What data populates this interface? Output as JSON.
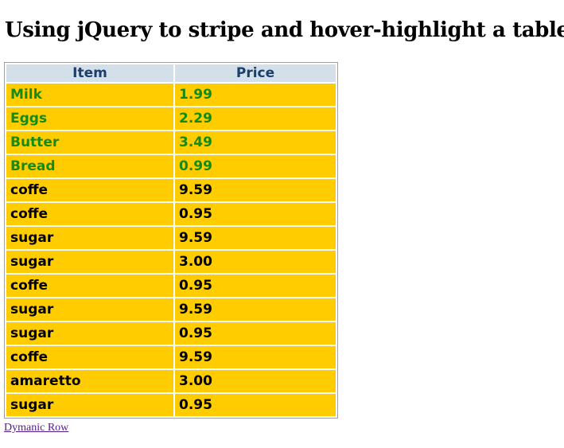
{
  "page": {
    "title": "Using jQuery to stripe and hover-highlight a table"
  },
  "table": {
    "headers": {
      "item": "Item",
      "price": "Price"
    },
    "rows": [
      {
        "item": "Milk",
        "price": "1.99",
        "highlighted": true
      },
      {
        "item": "Eggs",
        "price": "2.29",
        "highlighted": true
      },
      {
        "item": "Butter",
        "price": "3.49",
        "highlighted": true
      },
      {
        "item": "Bread",
        "price": "0.99",
        "highlighted": true
      },
      {
        "item": "coffe",
        "price": "9.59",
        "highlighted": false
      },
      {
        "item": "coffe",
        "price": "0.95",
        "highlighted": false
      },
      {
        "item": "sugar",
        "price": "9.59",
        "highlighted": false
      },
      {
        "item": "sugar",
        "price": "3.00",
        "highlighted": false
      },
      {
        "item": "coffe",
        "price": "0.95",
        "highlighted": false
      },
      {
        "item": "sugar",
        "price": "9.59",
        "highlighted": false
      },
      {
        "item": "sugar",
        "price": "0.95",
        "highlighted": false
      },
      {
        "item": "coffe",
        "price": "9.59",
        "highlighted": false
      },
      {
        "item": "amaretto",
        "price": "3.00",
        "highlighted": false
      },
      {
        "item": "sugar",
        "price": "0.95",
        "highlighted": false
      }
    ]
  },
  "links": {
    "dynamic_row": "Dymanic Row"
  },
  "colors": {
    "header_bg": "#d3e0ea",
    "header_text": "#1a3e6e",
    "row_bg": "#ffcc00",
    "highlight_text": "#158a15",
    "link": "#551a8b"
  }
}
